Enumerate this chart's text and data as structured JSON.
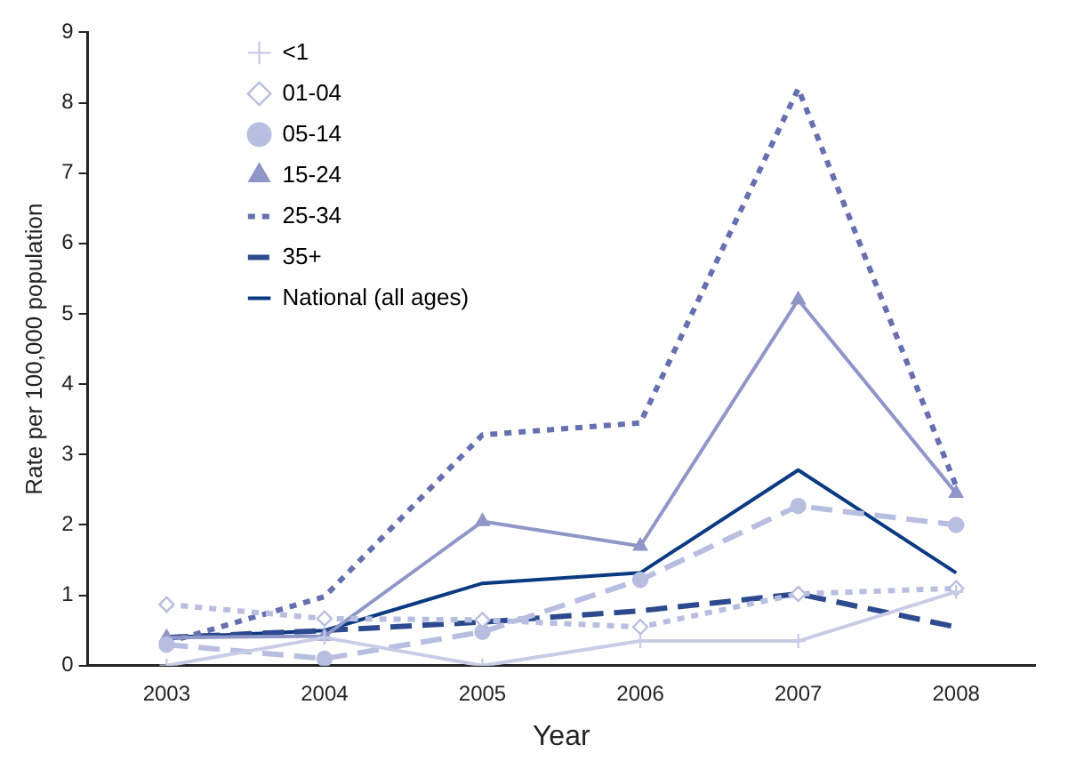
{
  "chart_data": {
    "type": "line",
    "xlabel": "Year",
    "ylabel": "Rate per 100,000 population",
    "categories": [
      "2003",
      "2004",
      "2005",
      "2006",
      "2007",
      "2008"
    ],
    "ylim": [
      0,
      9
    ],
    "yticks": [
      0,
      1,
      2,
      3,
      4,
      5,
      6,
      7,
      8,
      9
    ],
    "grid": false,
    "legend": "top left",
    "series": [
      {
        "name": "<1",
        "color": "#c8cce6",
        "marker": "cross",
        "line_style": "solid",
        "values": [
          0,
          0.4,
          0,
          0.35,
          0.35,
          1.05
        ]
      },
      {
        "name": "01-04",
        "color": "#b8bee0",
        "marker": "diamond",
        "line_style": "dotted",
        "values": [
          0.87,
          0.67,
          0.65,
          0.55,
          1.02,
          1.1
        ]
      },
      {
        "name": "05-14",
        "color": "#b8bedf",
        "marker": "circle",
        "line_style": "dashed",
        "values": [
          0.3,
          0.1,
          0.48,
          1.22,
          2.27,
          2.0
        ]
      },
      {
        "name": "15-24",
        "color": "#8f96c8",
        "marker": "triangle",
        "line_style": "solid",
        "values": [
          0.4,
          0.42,
          2.05,
          1.7,
          5.2,
          2.45
        ]
      },
      {
        "name": "25-34",
        "color": "#6670b0",
        "marker": "none",
        "line_style": "dotted",
        "values": [
          0.33,
          0.98,
          3.28,
          3.45,
          8.2,
          2.55
        ]
      },
      {
        "name": "35+",
        "color": "#2e4a8f",
        "marker": "none",
        "line_style": "dashed",
        "values": [
          0.4,
          0.5,
          0.62,
          0.78,
          1.02,
          0.55
        ]
      },
      {
        "name": "National (all ages)",
        "color": "#0a3a82",
        "marker": "none",
        "line_style": "solid",
        "values": [
          0.4,
          0.5,
          1.17,
          1.32,
          2.78,
          1.32
        ]
      }
    ]
  }
}
